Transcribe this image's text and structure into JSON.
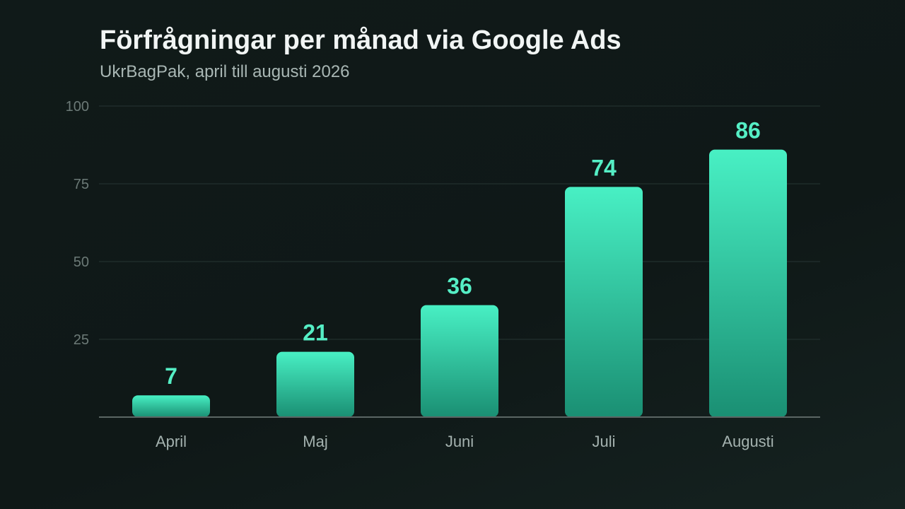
{
  "colors": {
    "background": "#101a19",
    "bar_top": "#48f0c4",
    "bar_bottom": "#1a8f73",
    "value_label": "#55eec5",
    "grid": "#1f2c2a",
    "axis": "#5b6664"
  },
  "chart_data": {
    "type": "bar",
    "title": "Förfrågningar per månad via Google Ads",
    "subtitle": "UkrBagPak, april till augusti 2026",
    "xlabel": "",
    "ylabel": "",
    "categories": [
      "April",
      "Maj",
      "Juni",
      "Juli",
      "Augusti"
    ],
    "values": [
      7,
      21,
      36,
      74,
      86
    ],
    "ylim": [
      0,
      100
    ],
    "yticks": [
      "25",
      "50",
      "75",
      "100"
    ],
    "grid": true,
    "legend": "none"
  }
}
